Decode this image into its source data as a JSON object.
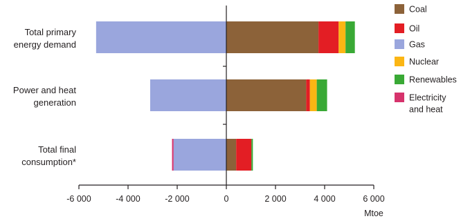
{
  "chart_data": {
    "type": "bar",
    "orientation": "horizontal",
    "stacked": true,
    "categories": [
      [
        "Total primary",
        "energy demand"
      ],
      [
        "Power and heat",
        "generation"
      ],
      [
        "Total final",
        "consumption*"
      ]
    ],
    "series": [
      {
        "name": "Coal",
        "color": "#8c6239",
        "values": [
          3750,
          3250,
          400
        ]
      },
      {
        "name": "Oil",
        "color": "#e31e24",
        "values": [
          820,
          150,
          620
        ]
      },
      {
        "name": "Gas",
        "color": "#9aa6dd",
        "values": [
          -5300,
          -3100,
          -2150
        ]
      },
      {
        "name": "Nuclear",
        "color": "#fbb614",
        "values": [
          280,
          280,
          0
        ]
      },
      {
        "name": "Renewables",
        "color": "#39a935",
        "values": [
          380,
          420,
          60
        ]
      },
      {
        "name": "Electricity and heat",
        "legend_lines": [
          "Electricity",
          "and heat"
        ],
        "color": "#d6336c",
        "values": [
          0,
          0,
          -60
        ]
      }
    ],
    "xlim": [
      -6000,
      6000
    ],
    "xticks": [
      -6000,
      -4000,
      -2000,
      0,
      2000,
      4000,
      6000
    ],
    "xtick_labels": [
      "-6 000",
      "-4 000",
      "-2 000",
      "0",
      "2 000",
      "4 000",
      "6 000"
    ],
    "xlabel": "Mtoe",
    "legend_position": "right",
    "grid": false
  }
}
